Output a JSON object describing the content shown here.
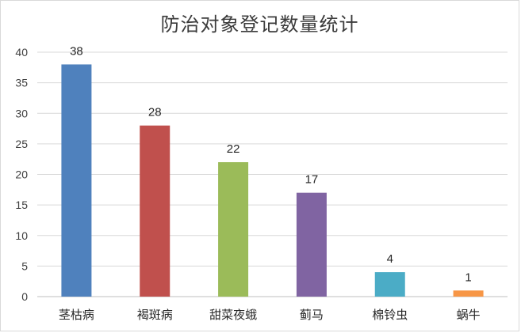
{
  "chart_data": {
    "type": "bar",
    "title": "防治对象登记数量统计",
    "categories": [
      "茎枯病",
      "褐斑病",
      "甜菜夜蛾",
      "蓟马",
      "棉铃虫",
      "蜗牛"
    ],
    "values": [
      38,
      28,
      22,
      17,
      4,
      1
    ],
    "colors": [
      "#4f81bd",
      "#c0504d",
      "#9bbb59",
      "#8064a2",
      "#4bacc6",
      "#f79646"
    ],
    "yticks": [
      0,
      5,
      10,
      15,
      20,
      25,
      30,
      35,
      40
    ],
    "ylim": [
      0,
      40
    ],
    "grid": true,
    "data_labels": true,
    "xlabel": "",
    "ylabel": ""
  }
}
